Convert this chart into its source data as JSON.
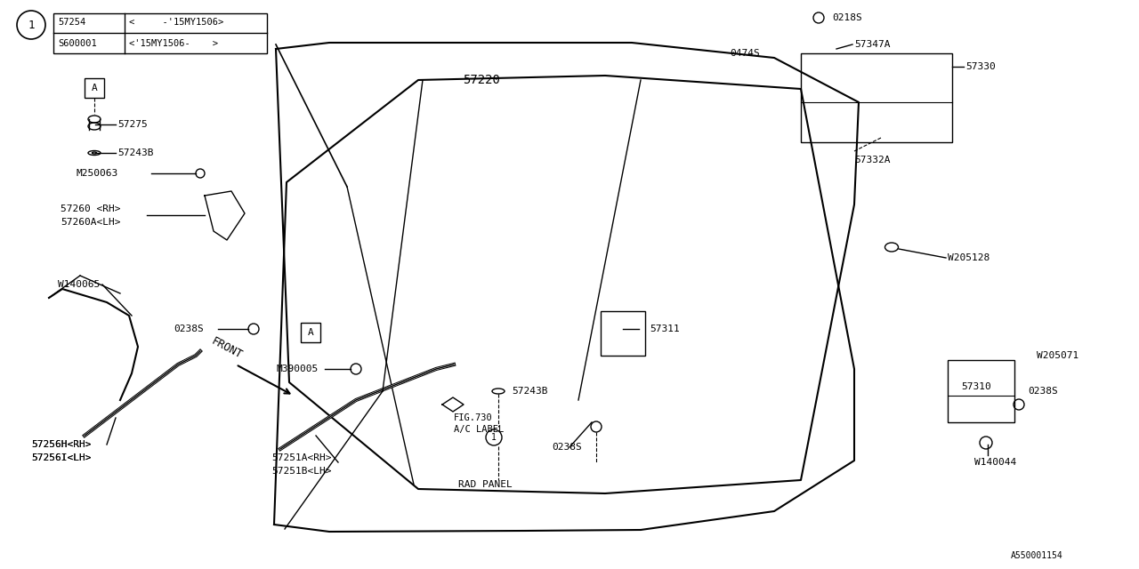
{
  "title": "",
  "bg_color": "#ffffff",
  "line_color": "#000000",
  "font_family": "monospace",
  "parts": {
    "hood_label": "57220",
    "front_label": "FRONT",
    "circle1_label": "1",
    "table": {
      "row1_part": "57254",
      "row1_desc": "<     -'15MY1506>",
      "row2_part": "S600001",
      "row2_desc": "<'15MY1506-    >"
    },
    "box_A_1": "A",
    "part_57275": "57275",
    "part_57243B_top": "57243B",
    "part_M250063": "M250063",
    "part_57260": "57260 <RH>",
    "part_57260A": "57260A<LH>",
    "part_W140065": "W140065",
    "part_0238S_left": "0238S",
    "box_A_2": "A",
    "part_M390005": "M390005",
    "part_57251A": "57251A<RH>",
    "part_57251B": "57251B<LH>",
    "part_FIG730": "FIG.730",
    "part_AC": "A/C LABEL",
    "part_57243B_mid": "57243B",
    "part_circle1": "1",
    "part_RAD": "RAD PANEL",
    "part_57256H": "57256H<RH>",
    "part_57256I": "57256I<LH>",
    "part_0218S": "0218S",
    "part_0474S": "0474S",
    "part_57347A": "57347A",
    "part_57330": "57330",
    "part_57332A": "57332A",
    "part_W205128": "W205128",
    "part_57311": "57311",
    "part_0238S_mid": "0238S",
    "part_57310": "57310",
    "part_W205071": "W205071",
    "part_0238S_right": "0238S",
    "part_W140044": "W140044",
    "part_A550001154": "A550001154"
  }
}
